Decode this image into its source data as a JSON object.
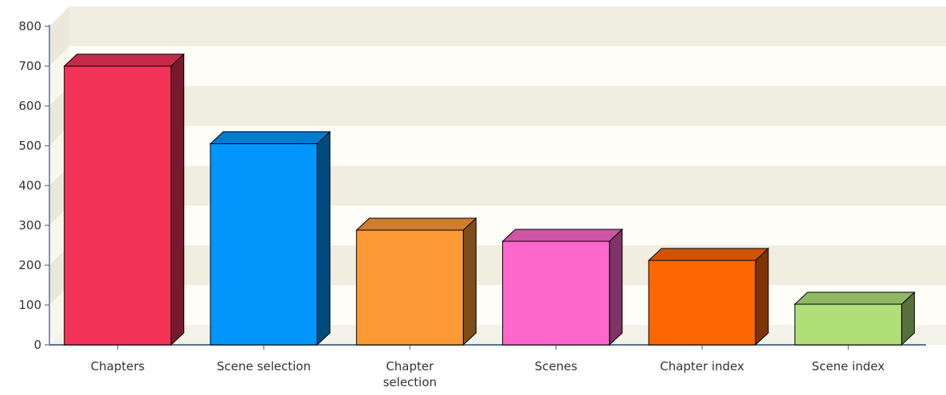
{
  "chart_data": {
    "type": "bar",
    "style": "3d",
    "categories": [
      "Chapters",
      "Scene selection",
      "Chapter selection",
      "Scenes",
      "Chapter index",
      "Scene index"
    ],
    "category_label_lines": [
      [
        "Chapters"
      ],
      [
        "Scene selection"
      ],
      [
        "Chapter",
        "selection"
      ],
      [
        "Scenes"
      ],
      [
        "Chapter index"
      ],
      [
        "Scene index"
      ]
    ],
    "values": [
      700,
      505,
      288,
      260,
      212,
      102
    ],
    "bar_colors": [
      "#f03356",
      "#0096fc",
      "#fd9a35",
      "#fd66cb",
      "#fd6600",
      "#b0df7a"
    ],
    "yticks": [
      0,
      100,
      200,
      300,
      400,
      500,
      600,
      700,
      800
    ],
    "ylim": [
      0,
      800
    ],
    "title": "",
    "xlabel": "",
    "ylabel": "",
    "grid": true,
    "legend": "none"
  }
}
